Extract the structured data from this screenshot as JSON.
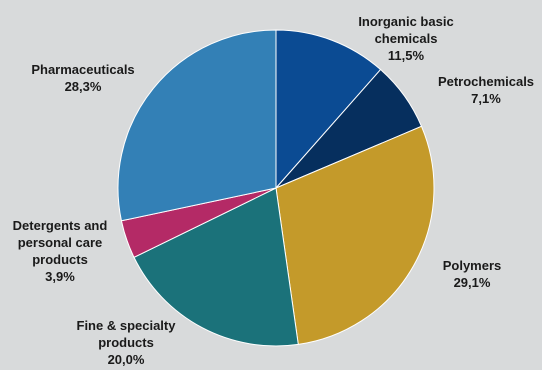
{
  "chart_data": {
    "type": "pie",
    "start_angle_deg": 0,
    "direction": "clockwise",
    "slices": [
      {
        "label": [
          "Inorganic basic",
          "chemicals"
        ],
        "value_label": "11,5%",
        "value": 11.5,
        "color": "#0b4b93"
      },
      {
        "label": [
          "Petrochemicals"
        ],
        "value_label": "7,1%",
        "value": 7.1,
        "color": "#062f5e"
      },
      {
        "label": [
          "Polymers"
        ],
        "value_label": "29,1%",
        "value": 29.1,
        "color": "#c49a2a"
      },
      {
        "label": [
          "Fine & specialty",
          "products"
        ],
        "value_label": "20,0%",
        "value": 20.0,
        "color": "#1b727a"
      },
      {
        "label": [
          "Detergents and",
          "personal care",
          "products"
        ],
        "value_label": "3,9%",
        "value": 3.9,
        "color": "#b42a66"
      },
      {
        "label": [
          "Pharmaceuticals"
        ],
        "value_label": "28,3%",
        "value": 28.3,
        "color": "#3380b6"
      }
    ]
  }
}
